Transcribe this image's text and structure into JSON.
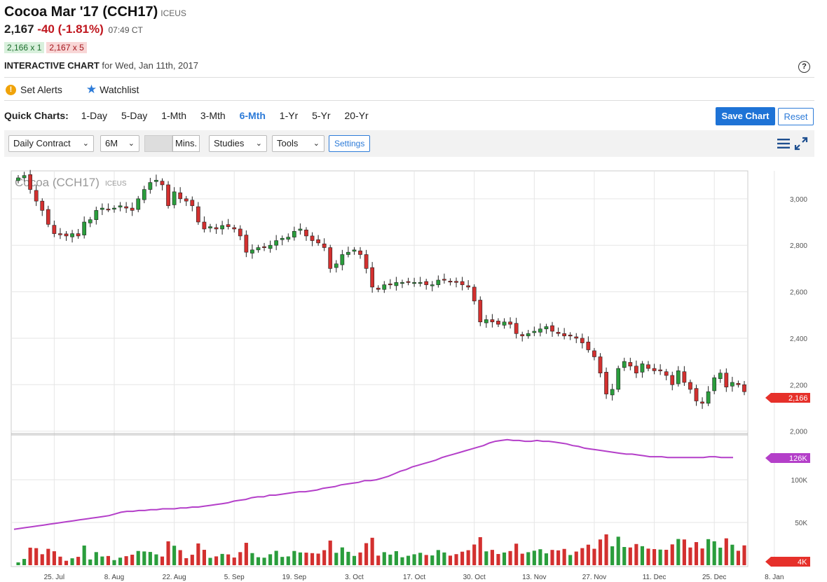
{
  "header": {
    "title": "Cocoa Mar '17 (CCH17)",
    "exchange": "ICEUS",
    "price": "2,167",
    "change": "-40 (-1.81%)",
    "time": "07:49 CT",
    "bid": "2,166 x 1",
    "ask": "2,167 x 5",
    "interactive_label": "INTERACTIVE CHART",
    "interactive_date": "for Wed, Jan 11th, 2017",
    "help": "?"
  },
  "actions": {
    "set_alerts": "Set Alerts",
    "watchlist": "Watchlist"
  },
  "quick_charts": {
    "label": "Quick Charts:",
    "items": [
      "1-Day",
      "5-Day",
      "1-Mth",
      "3-Mth",
      "6-Mth",
      "1-Yr",
      "5-Yr",
      "20-Yr"
    ],
    "active": "6-Mth",
    "save": "Save Chart",
    "reset": "Reset"
  },
  "toolbar": {
    "contract": "Daily Contract",
    "period": "6M",
    "mins": "Mins.",
    "studies": "Studies",
    "tools": "Tools",
    "settings": "Settings"
  },
  "colors": {
    "up": "#2a9d3c",
    "down": "#d3302f",
    "oi_line": "#b43fc9",
    "accent": "#1e73d6"
  },
  "chart_data": {
    "type": "candlestick",
    "title": "Cocoa (CCH17)",
    "exchange_label": "ICEUS",
    "price_ticks": [
      "3,000",
      "2,800",
      "2,600",
      "2,400",
      "2,200",
      "2,000"
    ],
    "price_tick_values": [
      3000,
      2800,
      2600,
      2400,
      2200,
      2000
    ],
    "ylim_price": [
      1990,
      3120
    ],
    "last_price_label": "2,166",
    "last_price": 2166,
    "x_labels": [
      "25. Jul",
      "8. Aug",
      "22. Aug",
      "5. Sep",
      "19. Sep",
      "3. Oct",
      "17. Oct",
      "30. Oct",
      "13. Nov",
      "27. Nov",
      "11. Dec",
      "25. Dec",
      "8. Jan"
    ],
    "x_label_index": [
      6,
      16,
      26,
      36,
      46,
      56,
      66,
      76,
      86,
      96,
      106,
      116,
      126
    ],
    "close": [
      3090,
      3100,
      3040,
      2990,
      2950,
      2890,
      2850,
      2845,
      2840,
      2850,
      2840,
      2900,
      2910,
      2950,
      2960,
      2955,
      2960,
      2970,
      2960,
      2950,
      3000,
      3040,
      3070,
      3080,
      3060,
      2970,
      3030,
      3000,
      2990,
      2970,
      2900,
      2870,
      2880,
      2870,
      2885,
      2880,
      2870,
      2840,
      2770,
      2780,
      2790,
      2790,
      2800,
      2820,
      2830,
      2835,
      2860,
      2870,
      2840,
      2820,
      2810,
      2790,
      2700,
      2720,
      2760,
      2770,
      2780,
      2760,
      2700,
      2620,
      2610,
      2630,
      2630,
      2640,
      2640,
      2640,
      2640,
      2640,
      2630,
      2630,
      2650,
      2650,
      2645,
      2640,
      2630,
      2620,
      2560,
      2470,
      2480,
      2470,
      2460,
      2470,
      2460,
      2420,
      2410,
      2420,
      2430,
      2440,
      2450,
      2430,
      2420,
      2410,
      2410,
      2400,
      2380,
      2350,
      2320,
      2250,
      2160,
      2180,
      2270,
      2300,
      2280,
      2250,
      2290,
      2270,
      2260,
      2260,
      2240,
      2200,
      2260,
      2210,
      2180,
      2130,
      2120,
      2170,
      2230,
      2250,
      2190,
      2210,
      2200,
      2170
    ],
    "volume_scale": [
      0,
      20000,
      40000
    ],
    "oi_ticks": [
      "100K",
      "50K"
    ],
    "oi_tick_values": [
      100000,
      50000
    ],
    "oi_last_label": "126K",
    "oi_last": 126000,
    "oi": [
      42000,
      43000,
      44000,
      45000,
      46000,
      47000,
      48000,
      49000,
      50000,
      51000,
      52000,
      53000,
      54000,
      55000,
      56000,
      57000,
      58000,
      60000,
      62000,
      63000,
      63000,
      64000,
      64000,
      65000,
      65000,
      66000,
      66000,
      66000,
      67000,
      67000,
      68000,
      68000,
      69000,
      70000,
      71000,
      72000,
      73000,
      75000,
      76000,
      77000,
      79000,
      80000,
      80000,
      82000,
      82000,
      83000,
      84000,
      85000,
      86000,
      86000,
      87000,
      88000,
      90000,
      91000,
      92000,
      94000,
      95000,
      96000,
      97000,
      99000,
      99000,
      100000,
      102000,
      104000,
      107000,
      110000,
      112000,
      115000,
      117000,
      119000,
      121000,
      123000,
      126000,
      128000,
      130000,
      132000,
      134000,
      136000,
      138000,
      140000,
      143000,
      145000,
      146000,
      147000,
      146000,
      146000,
      145000,
      145000,
      146000,
      145000,
      145000,
      144000,
      143000,
      142000,
      140000,
      139000,
      137000,
      136000,
      135000,
      134000,
      133000,
      132000,
      131000,
      130000,
      130000,
      129000,
      128000,
      127000,
      127000,
      127000,
      126000,
      126000,
      126000,
      126000,
      126000,
      126000,
      126000,
      127000,
      127000,
      126000,
      126000,
      126000
    ],
    "vol_last_label": "4K"
  }
}
